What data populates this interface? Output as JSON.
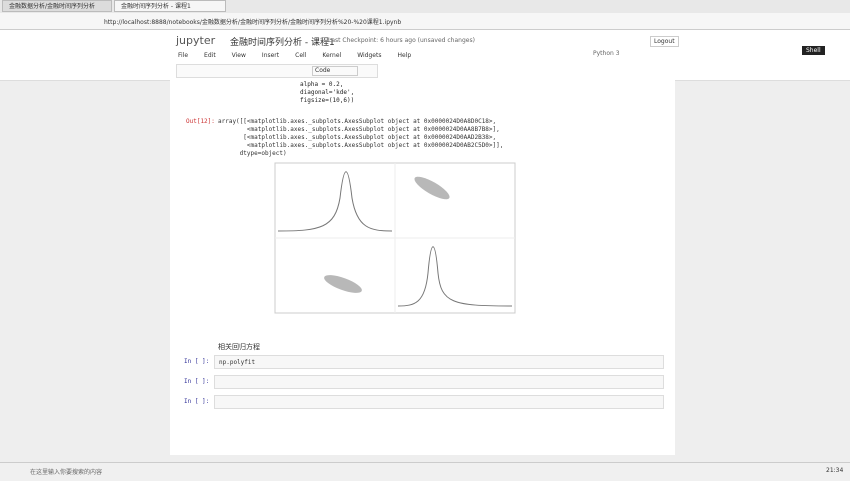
{
  "browser": {
    "tabs": [
      "金融数据分析/金融时间序列分析",
      "金融时间序列分析 - 课程1"
    ],
    "address": "http://localhost:8888/notebooks/金融数据分析/金融时间序列分析/金融时间序列分析%20-%20课程1.ipynb",
    "button": "Shell"
  },
  "header": {
    "logo": "jupyter",
    "title": "金融时间序列分析 - 课程1",
    "checkpoint": "Last Checkpoint: 6 hours ago (unsaved changes)",
    "logout": "Logout",
    "kernel": "Python 3"
  },
  "menu": [
    "File",
    "Edit",
    "View",
    "Insert",
    "Cell",
    "Kernel",
    "Widgets",
    "Help"
  ],
  "toolbar": {
    "cell_type": "Code"
  },
  "code": [
    "alpha = 0.2,",
    "diagonal='kde',",
    "figsize=(10,6))"
  ],
  "output": {
    "prompt": "Out[12]:",
    "lines": [
      "array([[<matplotlib.axes._subplots.AxesSubplot object at 0x0000024D0A8D0C18>,",
      "        <matplotlib.axes._subplots.AxesSubplot object at 0x0000024D0AA8B7B8>],",
      "       [<matplotlib.axes._subplots.AxesSubplot object at 0x0000024D0AAD2B38>,",
      "        <matplotlib.axes._subplots.AxesSubplot object at 0x0000024D0AB2C5D0>]],",
      "      dtype=object)"
    ]
  },
  "markdown": "相关回归方程",
  "cells": [
    {
      "prompt": "In [ ]:",
      "code": "np.polyfit"
    },
    {
      "prompt": "In [ ]:",
      "code": ""
    },
    {
      "prompt": "In [ ]:",
      "code": ""
    }
  ],
  "taskbar": {
    "search": "在这里输入你要搜索的内容",
    "time": "21:34"
  }
}
